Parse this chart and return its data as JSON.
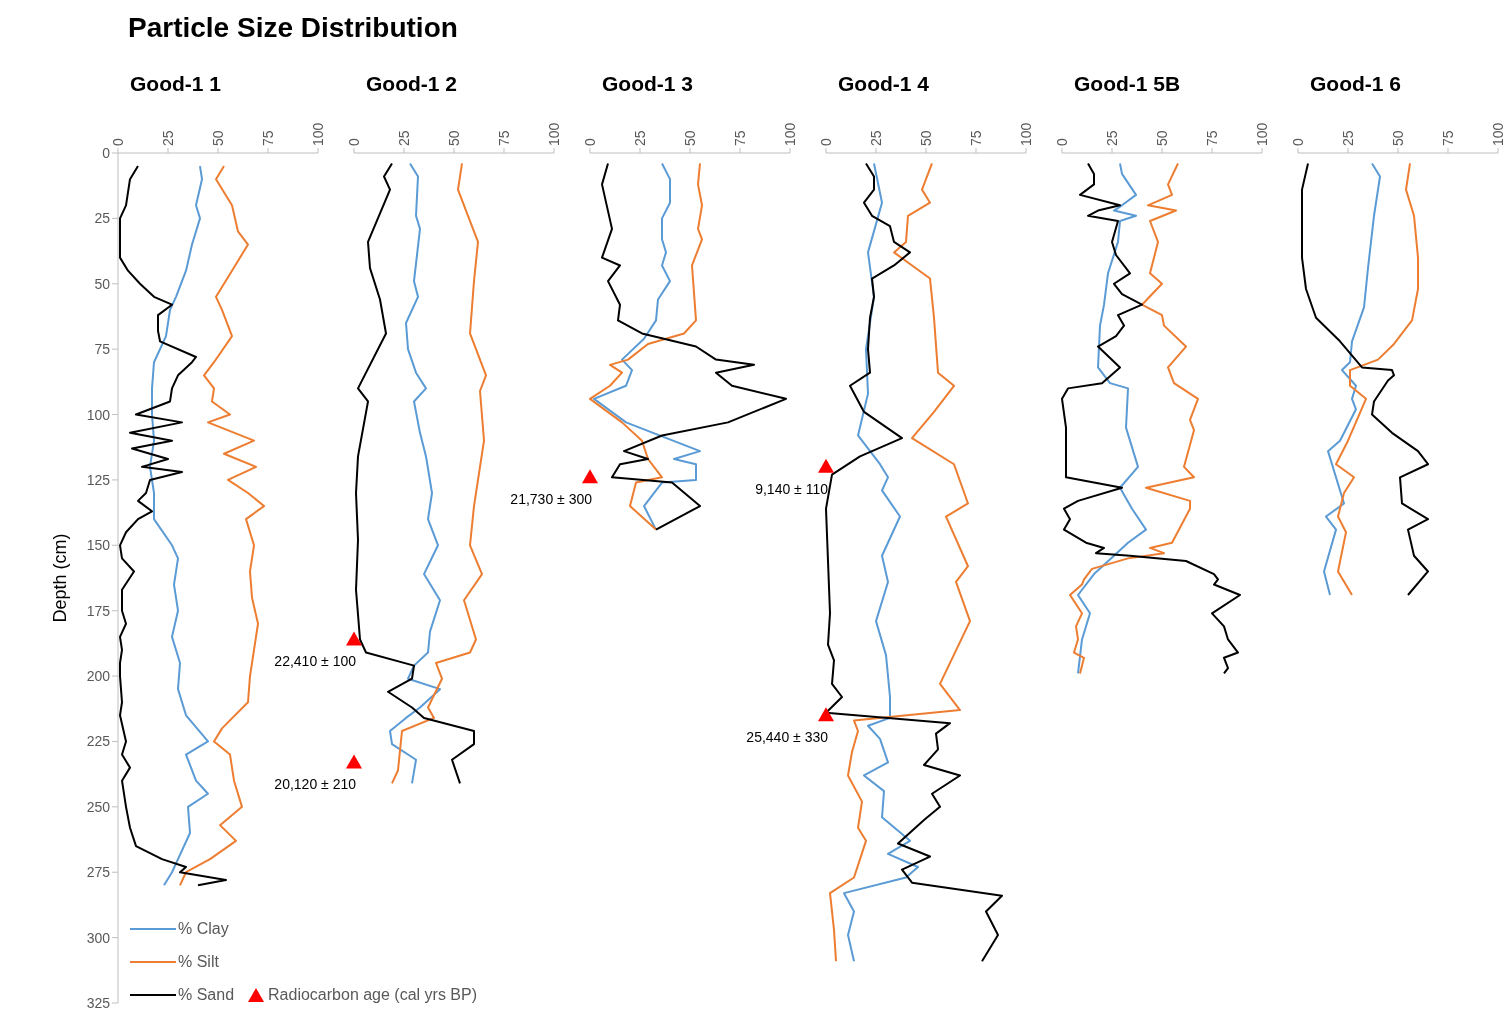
{
  "chart_data": [
    {
      "type": "line",
      "title": "Particle Size Distribution",
      "subtitle": "Good-1 1",
      "ylabel": "Depth (cm)",
      "orientation": "horizontal",
      "xlim": [
        0,
        100
      ],
      "xticks": [
        0,
        25,
        50,
        75,
        100
      ],
      "ylim": [
        325,
        0
      ],
      "yticks": [
        0,
        25,
        50,
        75,
        100,
        125,
        150,
        175,
        200,
        225,
        250,
        275,
        300,
        325
      ],
      "legend": "bottom left",
      "series": [
        {
          "name": "% Clay",
          "color": "#5b9bd5",
          "x": [
            5,
            10,
            20,
            25,
            35,
            45,
            55,
            60,
            70,
            80,
            90,
            100,
            110,
            120,
            130,
            140,
            150,
            155,
            165,
            175,
            185,
            195,
            205,
            215,
            225,
            230,
            240,
            245,
            250,
            260,
            270,
            275,
            280
          ],
          "values": [
            41,
            42,
            39,
            41,
            37,
            34,
            29,
            26,
            24,
            18,
            17,
            17,
            18,
            16,
            18,
            18,
            27,
            30,
            28,
            30,
            27,
            31,
            30,
            34,
            45,
            34,
            39,
            45,
            35,
            36,
            30,
            27,
            23
          ]
        },
        {
          "name": "% Silt",
          "color": "#ed7d31",
          "x": [
            5,
            10,
            20,
            30,
            35,
            45,
            55,
            60,
            70,
            80,
            85,
            90,
            95,
            100,
            103,
            110,
            115,
            120,
            125,
            130,
            135,
            140,
            150,
            160,
            170,
            180,
            190,
            200,
            210,
            220,
            225,
            230,
            240,
            250,
            257,
            263,
            270,
            275,
            280
          ],
          "values": [
            53,
            49,
            57,
            60,
            65,
            57,
            49,
            52,
            57,
            48,
            43,
            48,
            47,
            56,
            45,
            68,
            53,
            69,
            55,
            65,
            73,
            64,
            68,
            66,
            67,
            70,
            68,
            66,
            65,
            52,
            48,
            56,
            58,
            62,
            51,
            59,
            46,
            34,
            31
          ]
        },
        {
          "name": "% Sand",
          "color": "#000000",
          "x": [
            5,
            10,
            20,
            25,
            30,
            40,
            45,
            50,
            55,
            58,
            62,
            68,
            72,
            78,
            80,
            85,
            90,
            95,
            100,
            103,
            107,
            110,
            113,
            117,
            120,
            122,
            125,
            130,
            133,
            137,
            140,
            145,
            150,
            155,
            160,
            167,
            175,
            180,
            185,
            190,
            195,
            200,
            210,
            215,
            225,
            230,
            235,
            240,
            250,
            258,
            265,
            270,
            273,
            275,
            278,
            280
          ],
          "values": [
            10,
            6,
            4,
            1,
            1,
            1,
            5,
            11,
            18,
            27,
            20,
            20,
            21,
            39,
            37,
            30,
            27,
            26,
            9,
            32,
            6,
            27,
            7,
            25,
            12,
            32,
            16,
            14,
            10,
            17,
            10,
            4,
            1,
            2,
            8,
            2,
            2,
            4,
            1,
            2,
            1,
            1,
            2,
            1,
            4,
            2,
            6,
            2,
            4,
            6,
            9,
            22,
            34,
            31,
            54,
            40
          ]
        }
      ]
    },
    {
      "type": "line",
      "title": "Good-1 2",
      "orientation": "horizontal",
      "xlim": [
        0,
        100
      ],
      "xticks": [
        0,
        25,
        50,
        75,
        100
      ],
      "ylim": [
        325,
        0
      ],
      "tick_labels": "x",
      "series": [
        {
          "name": "% Clay",
          "color": "#5b9bd5",
          "x": [
            4,
            9,
            24,
            29,
            49,
            55,
            65,
            75,
            84,
            90,
            95,
            107,
            116,
            130,
            140,
            150,
            161,
            171,
            183,
            191,
            196,
            201,
            205,
            212,
            216,
            221,
            226,
            232,
            241
          ],
          "values": [
            28,
            32,
            31,
            33,
            30,
            32,
            26,
            27,
            31,
            36,
            30,
            33,
            36,
            39,
            37,
            42,
            35,
            43,
            38,
            37,
            30,
            27,
            43,
            33,
            26,
            18,
            19,
            31,
            29
          ]
        },
        {
          "name": "% Silt",
          "color": "#ed7d31",
          "x": [
            4,
            14,
            24,
            34,
            49,
            69,
            85,
            91,
            110,
            135,
            150,
            161,
            171,
            186,
            191,
            195,
            201,
            212,
            216,
            221,
            236,
            241
          ],
          "values": [
            54,
            52,
            57,
            62,
            60,
            58,
            66,
            63,
            65,
            60,
            58,
            64,
            55,
            61,
            58,
            41,
            44,
            37,
            40,
            24,
            22,
            19
          ]
        },
        {
          "name": "% Sand",
          "color": "#000000",
          "x": [
            4,
            9,
            14,
            34,
            44,
            56,
            69,
            90,
            95,
            116,
            130,
            148,
            167,
            186,
            191,
            196,
            201,
            206,
            212,
            216,
            221,
            226,
            232,
            241
          ],
          "values": [
            19,
            15,
            18,
            7,
            8,
            13,
            16,
            2,
            7,
            2,
            1,
            2,
            1,
            3,
            6,
            30,
            29,
            17,
            29,
            35,
            60,
            60,
            49,
            53
          ]
        },
        {
          "name": "Radiocarbon age (cal yrs BP)",
          "type": "scatter",
          "marker": "triangle",
          "color": "#ff0000",
          "x": [
            186,
            233
          ],
          "values": [
            0,
            0
          ],
          "value_labels": [
            "22,410 ± 100",
            "20,120 ± 210"
          ]
        }
      ]
    },
    {
      "type": "line",
      "title": "Good-1 3",
      "orientation": "horizontal",
      "xlim": [
        0,
        100
      ],
      "xticks": [
        0,
        25,
        50,
        75,
        100
      ],
      "ylim": [
        325,
        0
      ],
      "tick_labels": "x",
      "series": [
        {
          "name": "% Clay",
          "color": "#5b9bd5",
          "x": [
            4,
            10,
            19,
            25,
            33,
            38,
            43,
            49,
            56,
            64,
            71,
            79,
            83,
            89,
            94,
            103,
            114,
            117,
            119,
            125,
            126,
            135,
            144
          ],
          "values": [
            36,
            40,
            40,
            36,
            36,
            38,
            36,
            40,
            34,
            33,
            27,
            16,
            21,
            18,
            2,
            18,
            55,
            42,
            53,
            53,
            36,
            27,
            33
          ]
        },
        {
          "name": "% Silt",
          "color": "#ed7d31",
          "x": [
            4,
            12,
            20,
            29,
            33,
            43,
            64,
            69,
            73,
            79,
            81,
            84,
            89,
            94,
            103,
            110,
            117,
            124,
            126,
            135,
            144
          ],
          "values": [
            55,
            54,
            56,
            54,
            56,
            51,
            53,
            47,
            29,
            19,
            10,
            16,
            10,
            0,
            16,
            26,
            29,
            36,
            23,
            20,
            33
          ]
        },
        {
          "name": "% Sand",
          "color": "#000000",
          "x": [
            4,
            12,
            29,
            40,
            43,
            49,
            58,
            64,
            69,
            74,
            79,
            81,
            84,
            89,
            94,
            103,
            108,
            114,
            117,
            119,
            124,
            126,
            135,
            144
          ],
          "values": [
            9,
            6,
            11,
            6,
            15,
            9,
            15,
            14,
            26,
            53,
            63,
            82,
            63,
            71,
            98,
            69,
            36,
            17,
            29,
            15,
            11,
            41,
            55,
            33
          ]
        },
        {
          "name": "Radiocarbon age (cal yrs BP)",
          "type": "scatter",
          "marker": "triangle",
          "color": "#ff0000",
          "x": [
            124
          ],
          "values": [
            0
          ],
          "value_labels": [
            "21,730 ± 300"
          ]
        }
      ]
    },
    {
      "type": "line",
      "title": "Good-1 4",
      "orientation": "horizontal",
      "xlim": [
        0,
        100
      ],
      "xticks": [
        0,
        25,
        50,
        75,
        100
      ],
      "ylim": [
        325,
        0
      ],
      "tick_labels": "x",
      "series": [
        {
          "name": "% Clay",
          "color": "#5b9bd5",
          "x": [
            4,
            19,
            38,
            55,
            75,
            92,
            108,
            119,
            124,
            129,
            139,
            154,
            164,
            179,
            192,
            208,
            216,
            219,
            224,
            233,
            238,
            244,
            254,
            263,
            268,
            273,
            277,
            283,
            290,
            299,
            309
          ],
          "values": [
            24,
            28,
            21,
            24,
            20,
            21,
            16,
            27,
            31,
            28,
            37,
            28,
            31,
            25,
            30,
            32,
            32,
            21,
            27,
            31,
            19,
            29,
            28,
            42,
            31,
            46,
            40,
            9,
            14,
            11,
            14
          ]
        },
        {
          "name": "% Silt",
          "color": "#ed7d31",
          "x": [
            4,
            14,
            19,
            24,
            34,
            38,
            48,
            63,
            84,
            89,
            99,
            109,
            119,
            134,
            139,
            158,
            164,
            179,
            203,
            213,
            217,
            221,
            229,
            238,
            248,
            258,
            263,
            277,
            283,
            297,
            309
          ],
          "values": [
            53,
            48,
            52,
            41,
            40,
            34,
            52,
            54,
            56,
            64,
            54,
            43,
            64,
            71,
            60,
            71,
            65,
            72,
            57,
            67,
            14,
            16,
            13,
            11,
            18,
            16,
            20,
            14,
            2,
            4,
            5
          ]
        },
        {
          "name": "% Sand",
          "color": "#000000",
          "x": [
            4,
            9,
            14,
            19,
            24,
            28,
            34,
            38,
            43,
            48,
            55,
            63,
            75,
            84,
            89,
            99,
            109,
            116,
            123,
            136,
            156,
            176,
            188,
            194,
            203,
            208,
            214,
            218,
            222,
            228,
            234,
            238,
            245,
            250,
            255,
            264,
            269,
            274,
            279,
            284,
            290,
            299,
            309
          ],
          "values": [
            20,
            24,
            24,
            19,
            23,
            32,
            34,
            42,
            34,
            23,
            24,
            22,
            21,
            22,
            12,
            19,
            38,
            17,
            3,
            0,
            1,
            2,
            1,
            4,
            3,
            8,
            0,
            62,
            55,
            56,
            49,
            67,
            53,
            57,
            49,
            36,
            52,
            38,
            43,
            88,
            80,
            86,
            78
          ]
        },
        {
          "name": "Radiocarbon age (cal yrs BP)",
          "type": "scatter",
          "marker": "triangle",
          "color": "#ff0000",
          "x": [
            120,
            215
          ],
          "values": [
            0,
            0
          ],
          "value_labels": [
            "9,140 ± 110",
            "25,440 ± 330"
          ]
        }
      ]
    },
    {
      "type": "line",
      "title": "Good-1 5B",
      "orientation": "horizontal",
      "xlim": [
        0,
        100
      ],
      "xticks": [
        0,
        25,
        50,
        75,
        100
      ],
      "ylim": [
        325,
        0
      ],
      "tick_labels": "x",
      "series": [
        {
          "name": "% Clay",
          "color": "#5b9bd5",
          "x": [
            4,
            8,
            16,
            20,
            22,
            24,
            26,
            34,
            46,
            58,
            66,
            82,
            88,
            90,
            105,
            120,
            128,
            136,
            144,
            149,
            154,
            161,
            169,
            176,
            186,
            199
          ],
          "values": [
            29,
            30,
            37,
            30,
            26,
            37,
            29,
            28,
            23,
            21,
            19,
            18,
            24,
            33,
            32,
            38,
            29,
            35,
            42,
            33,
            26,
            16,
            8,
            14,
            10,
            8
          ]
        },
        {
          "name": "% Silt",
          "color": "#ed7d31",
          "x": [
            4,
            12,
            16,
            20,
            22,
            26,
            34,
            46,
            50,
            58,
            62,
            66,
            74,
            82,
            88,
            94,
            102,
            106,
            120,
            124,
            128,
            133,
            136,
            149,
            151,
            153,
            155,
            159,
            163,
            165,
            169,
            176,
            181,
            186,
            191,
            193,
            199
          ],
          "values": [
            58,
            53,
            55,
            43,
            57,
            44,
            48,
            44,
            50,
            40,
            50,
            51,
            62,
            53,
            56,
            68,
            64,
            66,
            61,
            66,
            42,
            64,
            64,
            55,
            44,
            51,
            33,
            15,
            11,
            10,
            4,
            10,
            7,
            8,
            6,
            11,
            9
          ]
        },
        {
          "name": "% Sand",
          "color": "#000000",
          "x": [
            4,
            8,
            12,
            16,
            20,
            22,
            24,
            26,
            34,
            39,
            46,
            50,
            54,
            58,
            62,
            66,
            70,
            74,
            82,
            88,
            90,
            94,
            105,
            124,
            128,
            133,
            136,
            140,
            144,
            149,
            151,
            153,
            154,
            156,
            161,
            163,
            165,
            169,
            176,
            181,
            186,
            191,
            193,
            197,
            199
          ],
          "values": [
            13,
            16,
            16,
            9,
            29,
            18,
            13,
            28,
            25,
            27,
            34,
            26,
            30,
            40,
            28,
            31,
            27,
            18,
            29,
            20,
            3,
            0,
            2,
            2,
            30,
            8,
            1,
            4,
            1,
            12,
            21,
            17,
            34,
            62,
            76,
            78,
            76,
            89,
            75,
            81,
            83,
            88,
            81,
            83,
            81
          ]
        }
      ]
    },
    {
      "type": "line",
      "title": "Good-1 6",
      "orientation": "horizontal",
      "xlim": [
        0,
        100
      ],
      "xticks": [
        0,
        25,
        50,
        75,
        100
      ],
      "ylim": [
        325,
        0
      ],
      "tick_labels": "x",
      "series": [
        {
          "name": "% Clay",
          "color": "#5b9bd5",
          "x": [
            4,
            9,
            24,
            44,
            59,
            72,
            80,
            83,
            89,
            94,
            98,
            110,
            114,
            134,
            139,
            144,
            160,
            169
          ],
          "values": [
            37,
            41,
            38,
            35,
            33,
            27,
            26,
            22,
            29,
            27,
            29,
            21,
            15,
            23,
            14,
            19,
            13,
            16
          ]
        },
        {
          "name": "% Silt",
          "color": "#ed7d31",
          "x": [
            4,
            14,
            24,
            40,
            52,
            64,
            73,
            79,
            83,
            89,
            94,
            110,
            119,
            124,
            130,
            139,
            145,
            160,
            169
          ],
          "values": [
            56,
            54,
            58,
            60,
            60,
            57,
            48,
            40,
            26,
            26,
            34,
            25,
            19,
            28,
            23,
            20,
            24,
            20,
            27
          ]
        },
        {
          "name": "% Sand",
          "color": "#000000",
          "x": [
            4,
            14,
            21,
            40,
            52,
            63,
            72,
            82,
            83,
            85,
            87,
            95,
            100,
            107,
            114,
            119,
            124,
            134,
            140,
            144,
            154,
            160,
            169
          ],
          "values": [
            5,
            2,
            2,
            2,
            4,
            9,
            21,
            32,
            47,
            48,
            45,
            38,
            37,
            47,
            60,
            65,
            51,
            52,
            65,
            55,
            58,
            65,
            55
          ]
        }
      ]
    }
  ]
}
